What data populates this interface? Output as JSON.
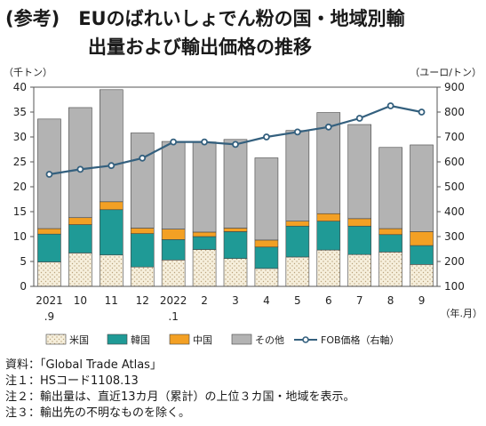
{
  "title_line1": "(参考)　EUのばれいしょでん粉の国・地域別輸",
  "title_line2": "出量および輸出価格の推移",
  "left_unit": "（千トン）",
  "right_unit": "（ユーロ/トン）",
  "x_unit": "（年.月）",
  "notes": [
    "資料：「Global Trade Atlas」",
    "注１：HSコード1108.13",
    "注２：輸出量は、直近13カ月（累計）の上位３カ国・地域を表示。",
    "注３：輸出先の不明なものを除く。"
  ],
  "chart_data": {
    "type": "bar",
    "stacked": true,
    "categories": [
      {
        "line1": "2021",
        "line2": ".9"
      },
      {
        "line1": "10",
        "line2": ""
      },
      {
        "line1": "11",
        "line2": ""
      },
      {
        "line1": "12",
        "line2": ""
      },
      {
        "line1": "2022",
        "line2": ".1"
      },
      {
        "line1": "2",
        "line2": ""
      },
      {
        "line1": "3",
        "line2": ""
      },
      {
        "line1": "4",
        "line2": ""
      },
      {
        "line1": "5",
        "line2": ""
      },
      {
        "line1": "6",
        "line2": ""
      },
      {
        "line1": "7",
        "line2": ""
      },
      {
        "line1": "8",
        "line2": ""
      },
      {
        "line1": "9",
        "line2": ""
      }
    ],
    "series": [
      {
        "name": "米国",
        "color": "#f6efdc",
        "pattern": "dots",
        "values": [
          4.9,
          6.7,
          6.3,
          3.9,
          5.3,
          7.4,
          5.6,
          3.6,
          5.9,
          7.3,
          6.4,
          6.9,
          4.4
        ]
      },
      {
        "name": "韓国",
        "color": "#1f9a96",
        "values": [
          5.6,
          5.7,
          9.1,
          6.7,
          4.1,
          2.6,
          5.4,
          4.3,
          6.2,
          5.8,
          5.7,
          3.5,
          3.8
        ]
      },
      {
        "name": "中国",
        "color": "#f3a024",
        "values": [
          1.1,
          1.4,
          1.6,
          1.1,
          2.1,
          0.9,
          0.7,
          1.4,
          1.0,
          1.5,
          1.5,
          1.2,
          2.8
        ]
      },
      {
        "name": "その他",
        "color": "#b3b3b3",
        "values": [
          22.0,
          22.1,
          22.5,
          19.1,
          17.6,
          18.1,
          17.8,
          16.5,
          18.2,
          20.3,
          18.9,
          16.3,
          17.4
        ]
      }
    ],
    "line_series": {
      "name": "FOB価格（右軸）",
      "color": "#34607e",
      "axis": "right",
      "values": [
        550,
        570,
        585,
        615,
        680,
        680,
        670,
        700,
        720,
        740,
        775,
        825,
        800
      ]
    },
    "y_left": {
      "min": 0,
      "max": 40,
      "step": 5
    },
    "y_right": {
      "min": 100,
      "max": 900,
      "step": 100
    },
    "legend_position": "bottom"
  }
}
